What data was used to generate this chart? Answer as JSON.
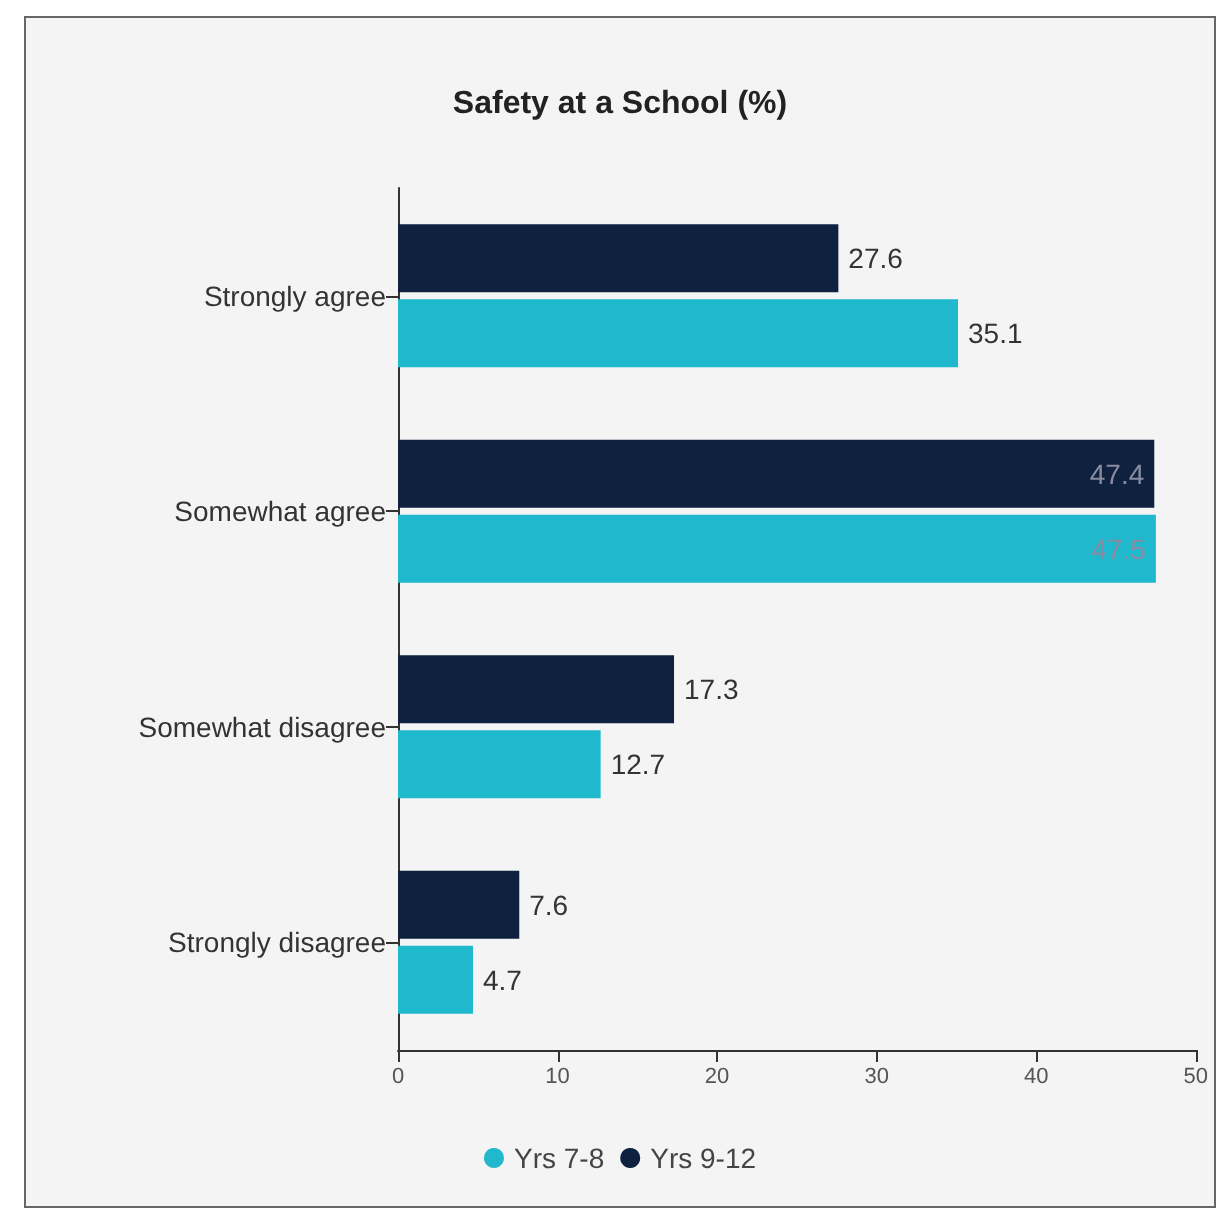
{
  "chart_data": {
    "type": "bar",
    "orientation": "horizontal",
    "title": "Safety at a School (%)",
    "categories": [
      "Strongly agree",
      "Somewhat agree",
      "Somewhat disagree",
      "Strongly disagree"
    ],
    "series": [
      {
        "name": "Yrs 7-8",
        "color": "#1fb8cc",
        "values": [
          35.1,
          47.5,
          12.7,
          4.7
        ]
      },
      {
        "name": "Yrs 9-12",
        "color": "#0e2240",
        "values": [
          27.6,
          47.4,
          17.3,
          7.6
        ]
      }
    ],
    "xlim": [
      0,
      50
    ],
    "xticks": [
      0,
      10,
      20,
      30,
      40,
      50
    ],
    "grid": false,
    "legend": "bottom",
    "data_labels": true
  }
}
